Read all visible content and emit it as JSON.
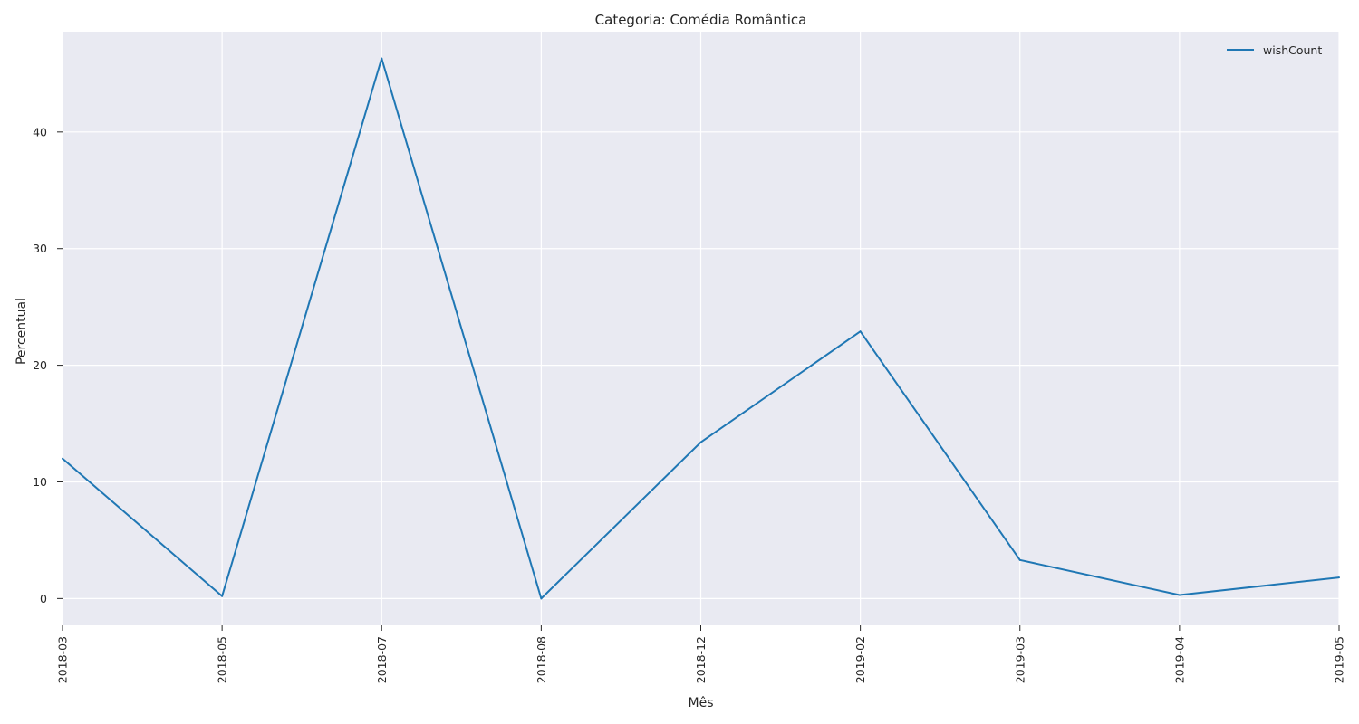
{
  "chart_data": {
    "type": "line",
    "title": "Categoria: Comédia Romântica",
    "xlabel": "Mês",
    "ylabel": "Percentual",
    "categories": [
      "2018-03",
      "2018-05",
      "2018-07",
      "2018-08",
      "2018-12",
      "2019-02",
      "2019-03",
      "2019-04",
      "2019-05"
    ],
    "series": [
      {
        "name": "wishCount",
        "values": [
          12.0,
          0.2,
          46.3,
          0.0,
          13.4,
          22.9,
          3.3,
          0.3,
          1.8
        ],
        "color": "#1f77b4"
      }
    ],
    "yticks": [
      0,
      10,
      20,
      30,
      40
    ],
    "ylim": [
      -2.3,
      48.6
    ],
    "grid": true,
    "legend_position": "top-right",
    "background": "#e9eaf2"
  }
}
